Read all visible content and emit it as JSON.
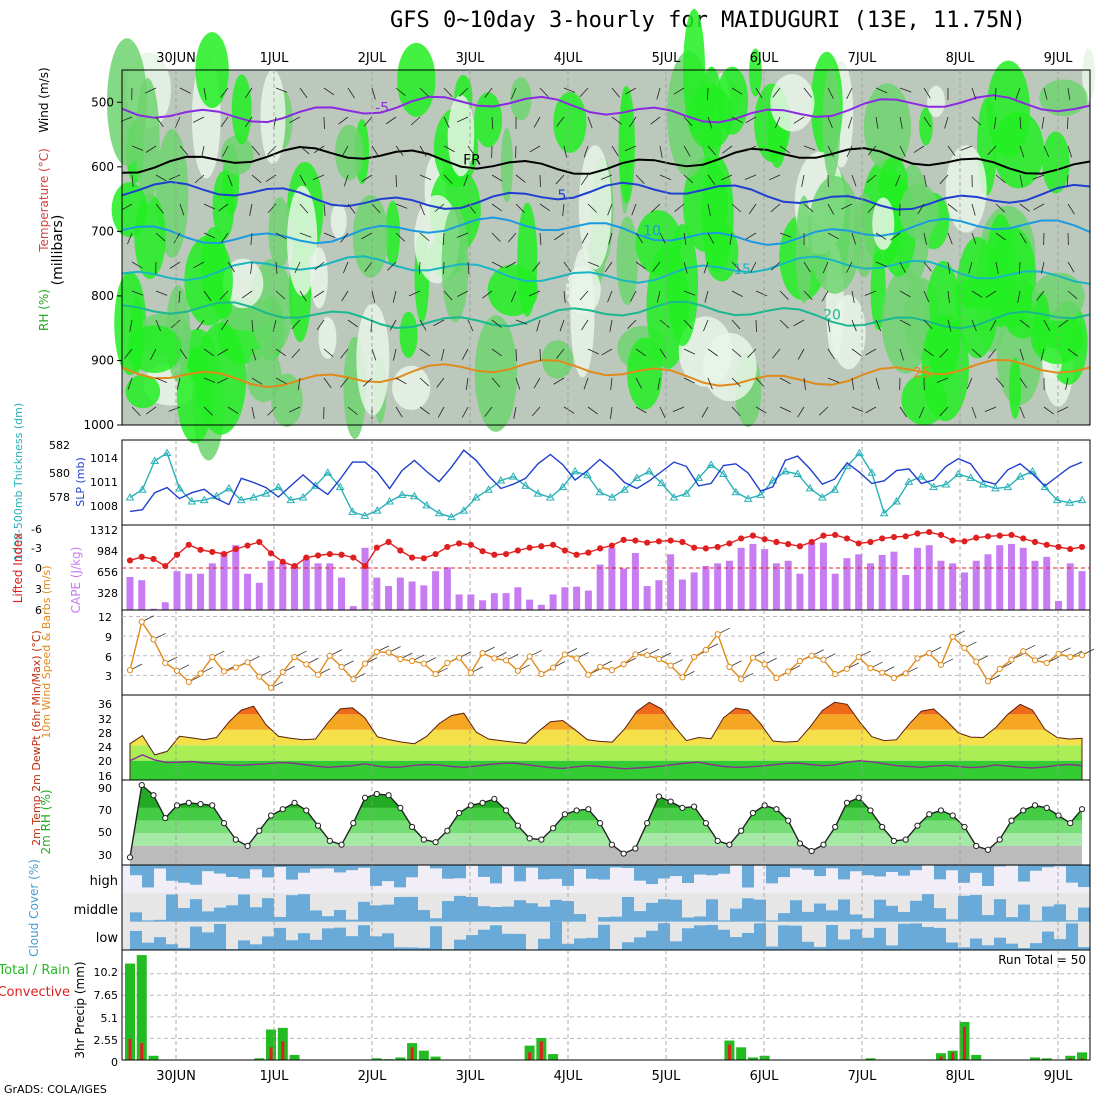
{
  "title": "GFS 0~10day 3-hourly for MAIDUGURI (13E, 11.75N)",
  "credit": "GrADS: COLA/IGES",
  "run_total": "Run Total = 50",
  "colors": {
    "rh_green": "#22dd22",
    "grid": "#999999",
    "purple": "#8a2be2",
    "orange": "#e08a1a",
    "blue": "#1f3fcf",
    "cyan": "#2ab0b8",
    "red": "#e02020",
    "cloud_blue": "#6aaad8"
  },
  "chart_data": [
    {
      "type": "heatmap",
      "panel": "upper-air",
      "days": [
        "30JUN",
        "1JUL",
        "2JUL",
        "3JUL",
        "4JUL",
        "5JUL",
        "6JUL",
        "7JUL",
        "8JUL",
        "9JUL"
      ],
      "ylabel": "(millibars)",
      "side_labels": [
        "RH (%)",
        "Temperature (°C)",
        "Wind (m/s)"
      ],
      "ylim": [
        450,
        1000
      ],
      "yticks": [
        500,
        600,
        700,
        800,
        900,
        1000
      ],
      "temperature_contours": [
        {
          "value": "-5",
          "level_mb": 510,
          "color": "#8a2be2"
        },
        {
          "value": "FR",
          "level_mb": 590,
          "color": "#000000"
        },
        {
          "value": "5",
          "level_mb": 645,
          "color": "#1f3fcf"
        },
        {
          "value": "10",
          "level_mb": 700,
          "color": "#1a9be0"
        },
        {
          "value": "15",
          "level_mb": 760,
          "color": "#1ab6c0"
        },
        {
          "value": "20",
          "level_mb": 830,
          "color": "#1ab890"
        },
        {
          "value": "25",
          "level_mb": 920,
          "color": "#e08a1a"
        }
      ]
    },
    {
      "type": "line",
      "panel": "thickness-slp",
      "ylabel_left": "1000-500mb Thickness (dm)",
      "ylabel_right": "SLP (mb)",
      "yticks_thickness": [
        "582",
        "580",
        "578"
      ],
      "yticks_slp": [
        "1014",
        "1011",
        "1008"
      ],
      "series": [
        {
          "name": "SLP (mb)",
          "color": "#1f3fcf",
          "values": [
            1007.6,
            1007.8,
            1009.8,
            1010.4,
            1009.1,
            1009.8,
            1010.2,
            1009.1,
            1008.4,
            1011.5,
            1011,
            1010.4,
            1009.3,
            1010.6,
            1011.9,
            1010.6,
            1009.6,
            1011.4,
            1013.4,
            1013.4,
            1012.2,
            1010.3,
            1012.4,
            1013.6,
            1012.3,
            1011.1,
            1012.8,
            1014.8,
            1013.6,
            1011.8,
            1010.3,
            1010.8,
            1011.5,
            1013.2,
            1014.3,
            1013.1,
            1011.3,
            1012.4,
            1013.7,
            1012.5,
            1011.0,
            1010.3,
            1011.2,
            1012.3,
            1013.4,
            1012.9,
            1010.6,
            1010.9,
            1013.0,
            1013.2,
            1012.1,
            1010.0,
            1010.5,
            1013.6,
            1014.1,
            1012.6,
            1010.8,
            1011.4,
            1013.3,
            1012.2,
            1010.9,
            1011.2,
            1012.4,
            1012.6,
            1010.9,
            1011.3,
            1012.9,
            1013.8,
            1013.2,
            1011.2,
            1010.8,
            1012.5,
            1013.2,
            1012.0,
            1010.6,
            1011.7,
            1012.8,
            1013.4
          ]
        },
        {
          "name": "1000-500mb Thickness (dm)",
          "color": "#2ab0b8",
          "values": [
            578.6,
            579.2,
            581.4,
            582.0,
            579.3,
            578.3,
            578.4,
            578.7,
            579.3,
            578.4,
            578.6,
            578.9,
            579.4,
            578.4,
            578.6,
            579.5,
            580.5,
            579.4,
            577.5,
            577.2,
            577.6,
            578.3,
            578.8,
            578.7,
            578.0,
            577.4,
            577.1,
            577.6,
            578.6,
            579.2,
            579.9,
            580.2,
            579.5,
            578.9,
            578.6,
            579.4,
            580.6,
            580.3,
            579.0,
            578.6,
            579.2,
            580.1,
            580.6,
            579.7,
            578.6,
            578.9,
            580.1,
            581.1,
            580.4,
            579.0,
            578.5,
            578.8,
            579.9,
            580.6,
            580.4,
            579.3,
            578.6,
            579.2,
            581.0,
            582.0,
            580.5,
            577.4,
            578.3,
            579.8,
            580.2,
            579.4,
            579.6,
            580.4,
            580.1,
            579.6,
            579.3,
            579.4,
            580.2,
            580.6,
            579.4,
            578.4,
            578.2,
            578.4
          ]
        }
      ]
    },
    {
      "type": "bar",
      "panel": "cape-li",
      "ylabel_left": "Lifted Index",
      "ylabel_right": "CAPE (J/kg)",
      "yticks_cape": [
        "1312",
        "984",
        "656",
        "328"
      ],
      "yticks_li": [
        "-6",
        "-3",
        "0",
        "3",
        "6"
      ],
      "series": [
        {
          "name": "CAPE (J/kg)",
          "color": "#c77cf2",
          "values": [
            510,
            460,
            20,
            120,
            600,
            560,
            560,
            720,
            900,
            1000,
            560,
            420,
            760,
            720,
            700,
            800,
            720,
            720,
            500,
            60,
            960,
            500,
            370,
            500,
            440,
            380,
            600,
            660,
            240,
            240,
            150,
            260,
            260,
            350,
            160,
            80,
            240,
            350,
            360,
            300,
            700,
            960,
            640,
            880,
            370,
            460,
            860,
            470,
            580,
            680,
            720,
            760,
            960,
            1020,
            940,
            720,
            760,
            560,
            1040,
            1040,
            560,
            800,
            860,
            720,
            850,
            900,
            540,
            960,
            1000,
            760,
            720,
            580,
            760,
            860,
            1000,
            1020,
            960,
            760,
            820,
            140,
            720,
            600
          ]
        },
        {
          "name": "Lifted Index",
          "color": "#e02020",
          "values": [
            -1.0,
            -1.5,
            -1.2,
            -0.2,
            -1.8,
            -3.2,
            -2.5,
            -2.2,
            -1.9,
            -2.6,
            -3.1,
            -3.6,
            -2.0,
            -0.8,
            -0.2,
            -1.4,
            -1.7,
            -1.9,
            -1.8,
            -1.4,
            -0.2,
            -2.8,
            -3.6,
            -2.4,
            -1.4,
            -1.3,
            -1.9,
            -2.9,
            -3.4,
            -3.2,
            -2.3,
            -1.8,
            -1.9,
            -2.4,
            -2.8,
            -3.0,
            -3.2,
            -2.4,
            -1.8,
            -2.1,
            -2.7,
            -3.1,
            -3.9,
            -3.8,
            -3.5,
            -3.7,
            -3.8,
            -3.6,
            -2.8,
            -2.7,
            -2.9,
            -3.4,
            -4.1,
            -4.5,
            -4.0,
            -3.6,
            -3.3,
            -3.0,
            -3.6,
            -4.5,
            -4.6,
            -4.1,
            -3.4,
            -3.6,
            -4.1,
            -4.3,
            -4.4,
            -4.8,
            -5.0,
            -4.6,
            -3.8,
            -3.7,
            -4.2,
            -4.4,
            -4.5,
            -4.6,
            -4.1,
            -3.6,
            -3.2,
            -2.9,
            -2.6,
            -2.9
          ]
        }
      ]
    },
    {
      "type": "line",
      "panel": "wind",
      "ylabel": "10m Wind Speed & Barbs (m/s)",
      "yticks": [
        "12",
        "9",
        "6",
        "3"
      ],
      "series": [
        {
          "name": "Speed",
          "color": "#e08a1a",
          "values": [
            3.8,
            11.2,
            8.5,
            4.9,
            3.7,
            2.0,
            3.3,
            5.8,
            3.6,
            4.2,
            5.0,
            2.8,
            1.1,
            3.5,
            5.8,
            4.7,
            3.1,
            6.0,
            4.3,
            2.4,
            4.8,
            6.6,
            6.5,
            5.5,
            5.2,
            4.8,
            3.2,
            4.9,
            5.7,
            3.4,
            6.4,
            5.6,
            5.3,
            3.7,
            5.9,
            3.2,
            4.2,
            6.2,
            5.6,
            3.1,
            4.3,
            3.8,
            4.7,
            6.2,
            6.1,
            5.5,
            4.5,
            2.7,
            5.8,
            6.9,
            9.3,
            4.3,
            2.4,
            5.7,
            4.7,
            2.6,
            3.6,
            5.2,
            6.0,
            5.4,
            3.2,
            4.0,
            5.8,
            4.1,
            3.4,
            2.6,
            3.3,
            5.6,
            6.4,
            4.6,
            8.9,
            7.2,
            5.1,
            2.1,
            4.0,
            5.4,
            6.7,
            5.3,
            4.9,
            6.3,
            5.8,
            6.1
          ]
        }
      ]
    },
    {
      "type": "area",
      "panel": "temp",
      "ylabel": "2m Temp 2m DewPt (6hr Min/Max) (°C)",
      "yticks": [
        "36",
        "32",
        "28",
        "24",
        "20",
        "16"
      ],
      "series": [
        {
          "name": "2m Temp",
          "color": "#d23c12",
          "values": [
            24.4,
            26.5,
            21.5,
            22.4,
            26.3,
            25.9,
            25.4,
            26.0,
            30.0,
            33.1,
            34.1,
            29.3,
            26.3,
            25.8,
            25.4,
            25.6,
            29.8,
            33.4,
            33.7,
            31.1,
            26.2,
            25.4,
            24.8,
            24.4,
            26.3,
            29.6,
            31.7,
            32.3,
            27.4,
            25.6,
            25.2,
            24.8,
            24.5,
            27.5,
            30.1,
            30.4,
            28.0,
            25.4,
            25.0,
            24.8,
            28.2,
            32.8,
            35.1,
            33.4,
            29.0,
            25.2,
            26.0,
            25.7,
            31.1,
            33.6,
            33.1,
            29.6,
            25.1,
            24.8,
            25.0,
            28.7,
            33.0,
            35.1,
            34.6,
            30.1,
            26.2,
            25.2,
            25.4,
            29.4,
            32.8,
            33.4,
            30.5,
            27.2,
            26.1,
            26.0,
            28.5,
            32.0,
            34.6,
            33.1,
            28.1,
            26.0,
            25.6,
            25.8
          ]
        },
        {
          "name": "2m DewPt",
          "color": "#8a3090",
          "values": [
            20.0,
            21.5,
            20.2,
            19.5,
            19.6,
            19.8,
            19.4,
            19.2,
            18.9,
            18.8,
            19.0,
            19.2,
            19.5,
            19.4,
            19.0,
            18.6,
            18.3,
            18.5,
            18.7,
            19.2,
            18.6,
            18.3,
            18.4,
            18.8,
            19.0,
            18.9,
            18.5,
            18.3,
            18.6,
            19.0,
            19.3,
            19.4,
            19.0,
            18.6,
            18.2,
            18.0,
            18.4,
            18.7,
            18.5,
            18.2,
            17.9,
            18.1,
            18.3,
            18.6,
            19.0,
            19.4,
            19.6,
            19.0,
            18.5,
            18.3,
            18.4,
            18.6,
            18.9,
            19.3,
            19.4,
            19.0,
            18.7,
            18.9,
            19.6,
            20.0,
            19.7,
            19.2,
            18.7,
            18.5,
            18.3,
            18.6,
            18.8,
            18.5,
            18.2,
            18.4,
            18.9,
            18.6,
            18.3,
            18.1,
            18.4,
            18.8,
            19.0,
            18.7
          ]
        }
      ]
    },
    {
      "type": "area",
      "panel": "rh",
      "ylabel": "2m RH (%)",
      "yticks": [
        "90",
        "70",
        "50",
        "30"
      ],
      "series": [
        {
          "name": "2m RH",
          "color": "#22bb22",
          "values": [
            31,
            88,
            80,
            62,
            72,
            74,
            73,
            72,
            58,
            45,
            40,
            52,
            64,
            69,
            74,
            68,
            56,
            44,
            41,
            58,
            78,
            81,
            80,
            70,
            55,
            45,
            43,
            52,
            66,
            72,
            74,
            77,
            68,
            56,
            46,
            45,
            54,
            65,
            68,
            69,
            58,
            41,
            34,
            38,
            58,
            79,
            75,
            70,
            71,
            58,
            44,
            41,
            52,
            66,
            72,
            69,
            60,
            42,
            36,
            41,
            55,
            74,
            78,
            68,
            55,
            44,
            45,
            56,
            65,
            68,
            64,
            55,
            40,
            37,
            45,
            60,
            68,
            72,
            70,
            64,
            58,
            69
          ]
        }
      ]
    },
    {
      "type": "heatmap",
      "panel": "cloud",
      "ylabel": "Cloud Cover (%)",
      "rows": [
        "high",
        "middle",
        "low"
      ]
    },
    {
      "type": "bar",
      "panel": "precip",
      "ylabel": "3hr Precip (mm)",
      "side_labels": [
        "Total / Rain",
        "Convective"
      ],
      "yticks": [
        "10.2",
        "7.65",
        "5.1",
        "2.55",
        "0"
      ],
      "series": [
        {
          "name": "Total / Rain",
          "color": "#22bb22",
          "values": [
            11.4,
            12.4,
            0.5,
            0,
            0,
            0,
            0,
            0,
            0,
            0,
            0,
            0.2,
            3.6,
            3.8,
            0.6,
            0,
            0,
            0,
            0,
            0,
            0,
            0.2,
            0.1,
            0.3,
            2.0,
            1.1,
            0.4,
            0,
            0,
            0,
            0,
            0,
            0,
            0,
            1.7,
            2.6,
            0.7,
            0,
            0,
            0,
            0,
            0,
            0,
            0,
            0,
            0,
            0,
            0,
            0,
            0,
            0,
            2.3,
            1.5,
            0.3,
            0.5,
            0,
            0,
            0,
            0,
            0,
            0,
            0,
            0,
            0.2,
            0,
            0,
            0,
            0,
            0,
            0.8,
            1.1,
            4.5,
            0.6,
            0,
            0,
            0,
            0,
            0.3,
            0.2,
            0,
            0.5,
            0.9
          ]
        },
        {
          "name": "Convective",
          "color": "#e02020",
          "values": [
            2.5,
            2.0,
            0,
            0,
            0,
            0,
            0,
            0,
            0,
            0,
            0,
            0,
            1.5,
            2.2,
            0,
            0,
            0,
            0,
            0,
            0,
            0,
            0,
            0,
            0,
            1.5,
            0,
            0,
            0,
            0,
            0,
            0,
            0,
            0,
            0,
            0.9,
            2.2,
            0,
            0,
            0,
            0,
            0,
            0,
            0,
            0,
            0,
            0,
            0,
            0,
            0,
            0,
            0,
            1.8,
            0,
            0,
            0,
            0,
            0,
            0,
            0,
            0,
            0,
            0,
            0,
            0,
            0,
            0,
            0,
            0,
            0,
            0.4,
            0.9,
            3.9,
            0,
            0,
            0,
            0,
            0,
            0,
            0,
            0,
            0.2,
            0.2
          ]
        }
      ]
    }
  ]
}
